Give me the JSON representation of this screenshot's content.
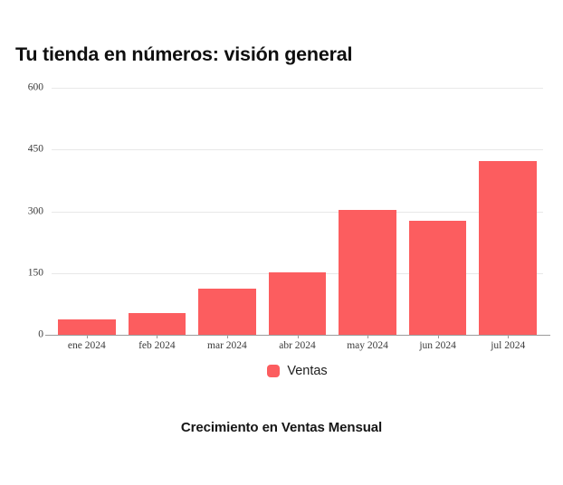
{
  "header": {
    "title": "Tu tienda en números: visión general"
  },
  "chart_data": {
    "type": "bar",
    "title": "Crecimiento en Ventas Mensual",
    "categories": [
      "ene 2024",
      "feb 2024",
      "mar 2024",
      "abr 2024",
      "may 2024",
      "jun 2024",
      "jul 2024"
    ],
    "series": [
      {
        "name": "Ventas",
        "values": [
          38,
          52,
          113,
          152,
          303,
          277,
          422
        ],
        "color": "#fc5d5f"
      }
    ],
    "xlabel": "",
    "ylabel": "",
    "ylim": [
      0,
      600
    ],
    "yticks": [
      0,
      150,
      300,
      450,
      600
    ],
    "grid": "horizontal",
    "legend_position": "bottom",
    "caption": "Crecimiento en Ventas Mensual"
  },
  "legend": {
    "items": [
      {
        "label": "Ventas",
        "color": "#fc5d5f"
      }
    ]
  },
  "colors": {
    "bar": "#fc5d5f",
    "grid": "#e8e8e8",
    "axis": "#9b9b9b",
    "tick_text": "#3b3b3b",
    "background": "#ffffff"
  }
}
